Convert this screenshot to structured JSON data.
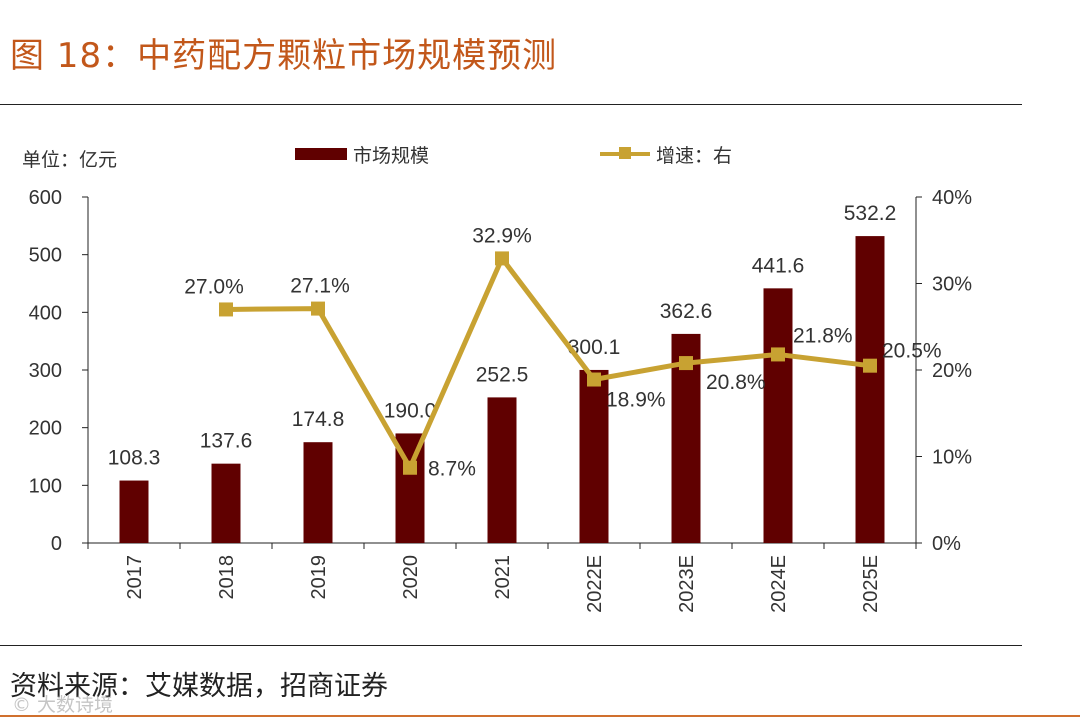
{
  "figure": {
    "title": "图 18：中药配方颗粒市场规模预测",
    "unit_label": "单位：亿元",
    "source": "资料来源：艾媒数据，招商证券",
    "watermark": "© 大数诗境"
  },
  "chart_data": {
    "type": "bar+line",
    "categories": [
      "2017",
      "2018",
      "2019",
      "2020",
      "2021",
      "2022E",
      "2023E",
      "2024E",
      "2025E"
    ],
    "series": [
      {
        "name": "市场规模",
        "type": "bar",
        "axis": "left",
        "color": "#600000",
        "values": [
          108.3,
          137.6,
          174.8,
          190.0,
          252.5,
          300.1,
          362.6,
          441.6,
          532.2
        ],
        "labels": [
          "108.3",
          "137.6",
          "174.8",
          "190.0",
          "252.5",
          "300.1",
          "362.6",
          "441.6",
          "532.2"
        ]
      },
      {
        "name": "增速：右",
        "type": "line",
        "axis": "right",
        "color": "#c8a232",
        "values": [
          null,
          27.0,
          27.1,
          8.7,
          32.9,
          18.9,
          20.8,
          21.8,
          20.5
        ],
        "labels": [
          null,
          "27.0%",
          "27.1%",
          "8.7%",
          "32.9%",
          "18.9%",
          "20.8%",
          "21.8%",
          "20.5%"
        ]
      }
    ],
    "left_axis": {
      "min": 0,
      "max": 600,
      "ticks": [
        "0",
        "100",
        "200",
        "300",
        "400",
        "500",
        "600"
      ]
    },
    "right_axis": {
      "min": 0,
      "max": 40,
      "ticks": [
        "0%",
        "10%",
        "20%",
        "30%",
        "40%"
      ]
    },
    "legend": [
      "市场规模",
      "增速：右"
    ],
    "legend_position": "top"
  }
}
